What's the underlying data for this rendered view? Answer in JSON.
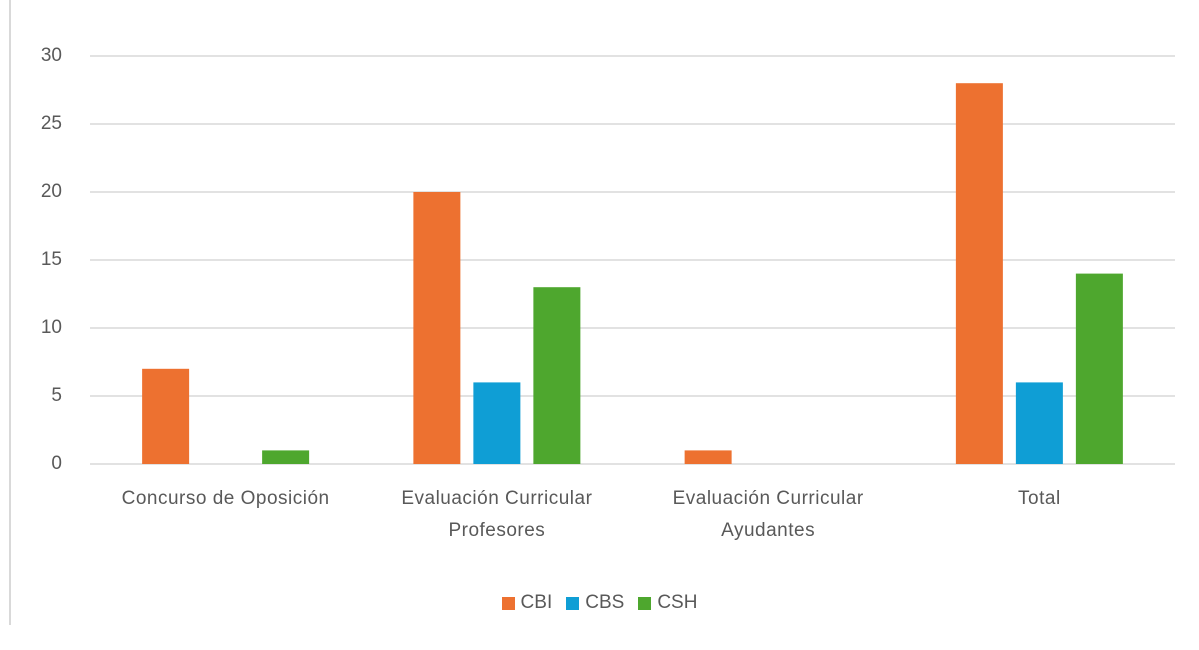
{
  "chart_data": {
    "type": "bar",
    "categories": [
      "Concurso de Oposición",
      "Evaluación Curricular Profesores",
      "Evaluación Curricular Ayudantes",
      "Total"
    ],
    "series": [
      {
        "name": "CBI",
        "color": "#ed7130",
        "values": [
          7,
          20,
          1,
          28
        ]
      },
      {
        "name": "CBS",
        "color": "#0f9ed5",
        "values": [
          0,
          6,
          0,
          6
        ]
      },
      {
        "name": "CSH",
        "color": "#4ea72e",
        "values": [
          1,
          13,
          0,
          14
        ]
      }
    ],
    "ylim": [
      0,
      30
    ],
    "yticks": [
      0,
      5,
      10,
      15,
      20,
      25,
      30
    ],
    "grid": true,
    "legend": "bottom"
  }
}
